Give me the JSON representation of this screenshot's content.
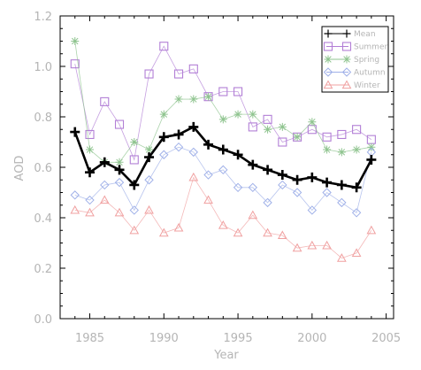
{
  "chart_data": {
    "type": "line",
    "xlabel": "Year",
    "ylabel": "AOD",
    "xlim": [
      1983,
      2005.5
    ],
    "ylim": [
      0,
      1.2
    ],
    "xticks": [
      1985,
      1990,
      1995,
      2000,
      2005
    ],
    "xtick_labels": [
      "1985",
      "1990",
      "1995",
      "2000",
      "2005"
    ],
    "yticks": [
      0,
      0.2,
      0.4,
      0.6,
      0.8,
      1.0,
      1.2
    ],
    "ytick_labels": [
      "0.0",
      "0.2",
      "0.4",
      "0.6",
      "0.8",
      "1.0",
      "1.2"
    ],
    "grid": false,
    "legend_position": "top-right",
    "x": [
      1984,
      1985,
      1986,
      1987,
      1988,
      1989,
      1990,
      1991,
      1992,
      1993,
      1994,
      1995,
      1996,
      1997,
      1998,
      1999,
      2000,
      2001,
      2002,
      2003,
      2004
    ],
    "series": [
      {
        "name": "Mean",
        "marker": "plus",
        "color": "#000000",
        "values": [
          0.74,
          0.58,
          0.62,
          0.59,
          0.53,
          0.64,
          0.72,
          0.73,
          0.76,
          0.69,
          0.67,
          0.65,
          0.61,
          0.59,
          0.57,
          0.55,
          0.56,
          0.54,
          0.53,
          0.52,
          0.63
        ]
      },
      {
        "name": "Summer",
        "marker": "square",
        "color": "#b27fd6",
        "values": [
          1.01,
          0.73,
          0.86,
          0.77,
          0.63,
          0.97,
          1.08,
          0.97,
          0.99,
          0.88,
          0.9,
          0.9,
          0.76,
          0.79,
          0.7,
          0.72,
          0.75,
          0.72,
          0.73,
          0.75,
          0.71
        ]
      },
      {
        "name": "Spring",
        "marker": "star",
        "color": "#8fc48f",
        "values": [
          1.1,
          0.67,
          0.62,
          0.62,
          0.7,
          0.67,
          0.81,
          0.87,
          0.87,
          0.88,
          0.79,
          0.81,
          0.81,
          0.75,
          0.76,
          0.72,
          0.78,
          0.67,
          0.66,
          0.67,
          0.68
        ]
      },
      {
        "name": "Autumn",
        "marker": "diamond",
        "color": "#9fb0e8",
        "values": [
          0.49,
          0.47,
          0.53,
          0.54,
          0.43,
          0.55,
          0.65,
          0.68,
          0.66,
          0.57,
          0.59,
          0.52,
          0.52,
          0.46,
          0.53,
          0.5,
          0.43,
          0.5,
          0.46,
          0.42,
          0.66
        ]
      },
      {
        "name": "Winter",
        "marker": "triangle",
        "color": "#f0a0a0",
        "values": [
          0.43,
          0.42,
          0.47,
          0.42,
          0.35,
          0.43,
          0.34,
          0.36,
          0.56,
          0.47,
          0.37,
          0.34,
          0.41,
          0.34,
          0.33,
          0.28,
          0.29,
          0.29,
          0.24,
          0.26,
          0.35
        ]
      }
    ]
  }
}
